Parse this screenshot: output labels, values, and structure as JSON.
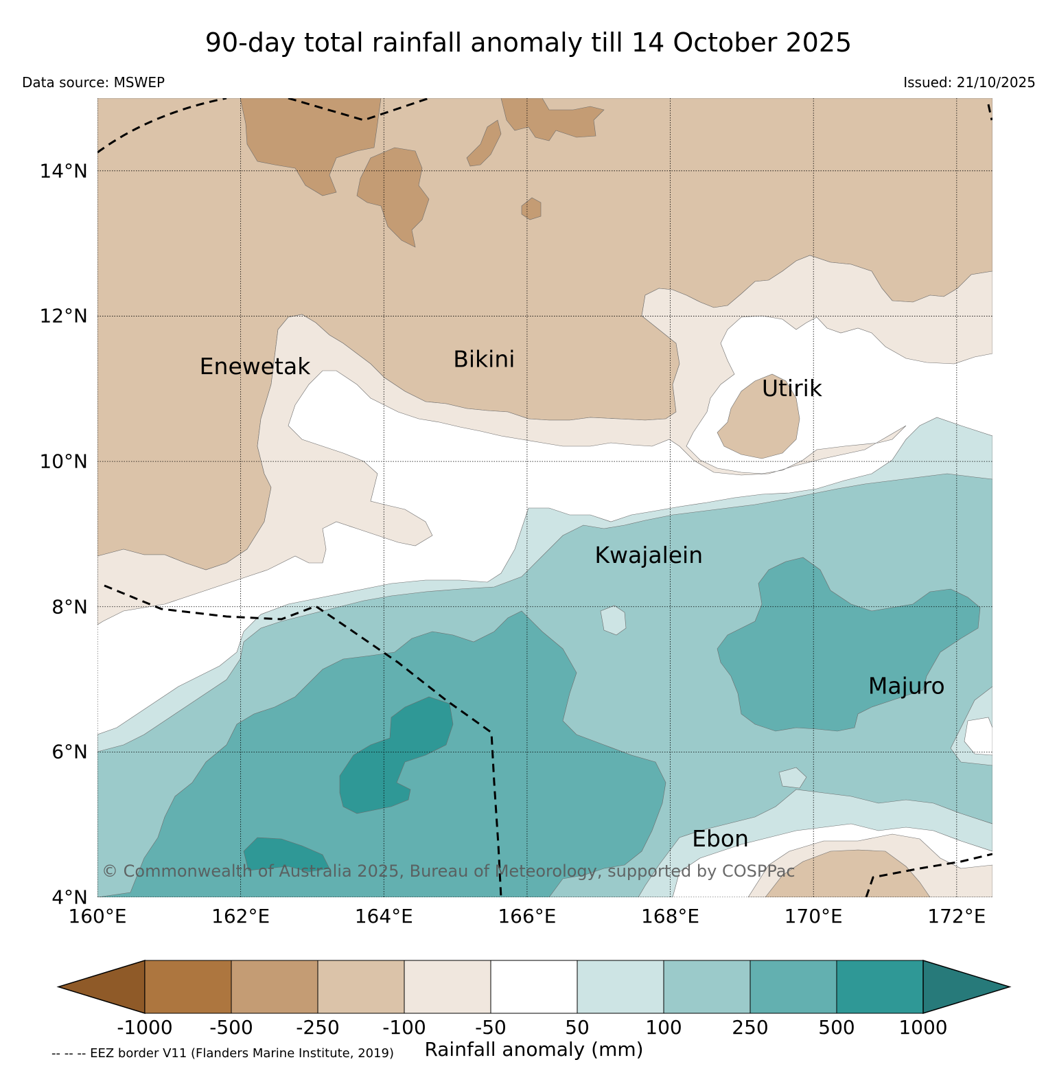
{
  "header": {
    "title": "90-day total rainfall anomaly till 14 October 2025",
    "data_source": "Data source: MSWEP",
    "issued": "Issued: 21/10/2025"
  },
  "map": {
    "lon_range": [
      160,
      172.5
    ],
    "lat_range": [
      4,
      15
    ],
    "lat_ticks": [
      {
        "value": 14,
        "label": "14°N"
      },
      {
        "value": 12,
        "label": "12°N"
      },
      {
        "value": 10,
        "label": "10°N"
      },
      {
        "value": 8,
        "label": "8°N"
      },
      {
        "value": 6,
        "label": "6°N"
      },
      {
        "value": 4,
        "label": "4°N"
      }
    ],
    "lon_ticks": [
      {
        "value": 160,
        "label": "160°E"
      },
      {
        "value": 162,
        "label": "162°E"
      },
      {
        "value": 164,
        "label": "164°E"
      },
      {
        "value": 166,
        "label": "166°E"
      },
      {
        "value": 168,
        "label": "168°E"
      },
      {
        "value": 170,
        "label": "170°E"
      },
      {
        "value": 172,
        "label": "172°E"
      }
    ],
    "places": [
      {
        "name": "Enewetak",
        "lon": 162.2,
        "lat": 11.2
      },
      {
        "name": "Bikini",
        "lon": 165.4,
        "lat": 11.3
      },
      {
        "name": "Utirik",
        "lon": 169.7,
        "lat": 10.9
      },
      {
        "name": "Kwajalein",
        "lon": 167.7,
        "lat": 8.6
      },
      {
        "name": "Majuro",
        "lon": 171.3,
        "lat": 6.8
      },
      {
        "name": "Ebon",
        "lon": 168.7,
        "lat": 4.7
      }
    ],
    "copyright": "© Commonwealth of Australia 2025, Bureau of Meteorology, supported by COSPPac",
    "gridlines": true
  },
  "colors": {
    "lt_-1000": "#8f5a28",
    "-1000_-500": "#ad763f",
    "-500_-250": "#c49c74",
    "-250_-100": "#dbc3a9",
    "-100_-50": "#f0e7de",
    "-50_50": "#ffffff",
    "50_100": "#cde4e4",
    "100_250": "#9bcaca",
    "250_500": "#63b0b0",
    "500_1000": "#2f9896",
    "gt_1000": "#277a7a"
  },
  "colorbar": {
    "title": "Rainfall anomaly (mm)",
    "boundaries": [
      "-1000",
      "-500",
      "-250",
      "-100",
      "-50",
      "50",
      "100",
      "250",
      "500",
      "1000"
    ],
    "bands": [
      "#ad763f",
      "#c49c74",
      "#dbc3a9",
      "#f0e7de",
      "#ffffff",
      "#cde4e4",
      "#9bcaca",
      "#63b0b0",
      "#2f9896"
    ],
    "extend_low": "#8f5a28",
    "extend_high": "#277a7a"
  },
  "footer": {
    "eez_note": "-- -- -- EEZ border V11 (Flanders Marine Institute, 2019)"
  }
}
